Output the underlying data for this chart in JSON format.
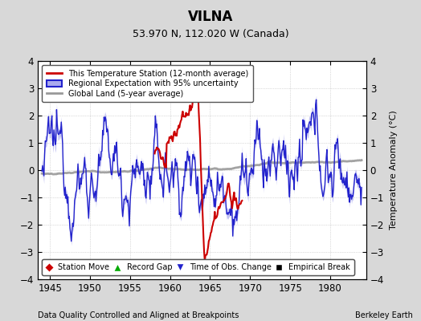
{
  "title": "VILNA",
  "subtitle": "53.970 N, 112.020 W (Canada)",
  "xlabel_bottom": "Data Quality Controlled and Aligned at Breakpoints",
  "xlabel_right": "Berkeley Earth",
  "ylabel": "Temperature Anomaly (°C)",
  "xlim": [
    1943.5,
    1984.5
  ],
  "ylim": [
    -4,
    4
  ],
  "xticks": [
    1945,
    1950,
    1955,
    1960,
    1965,
    1970,
    1975,
    1980
  ],
  "yticks": [
    -4,
    -3,
    -2,
    -1,
    0,
    1,
    2,
    3,
    4
  ],
  "bg_color": "#d8d8d8",
  "plot_bg_color": "#ffffff",
  "station_color": "#cc0000",
  "regional_color": "#2222cc",
  "regional_fill_color": "#aaaaee",
  "global_color": "#999999",
  "seed": 12345
}
